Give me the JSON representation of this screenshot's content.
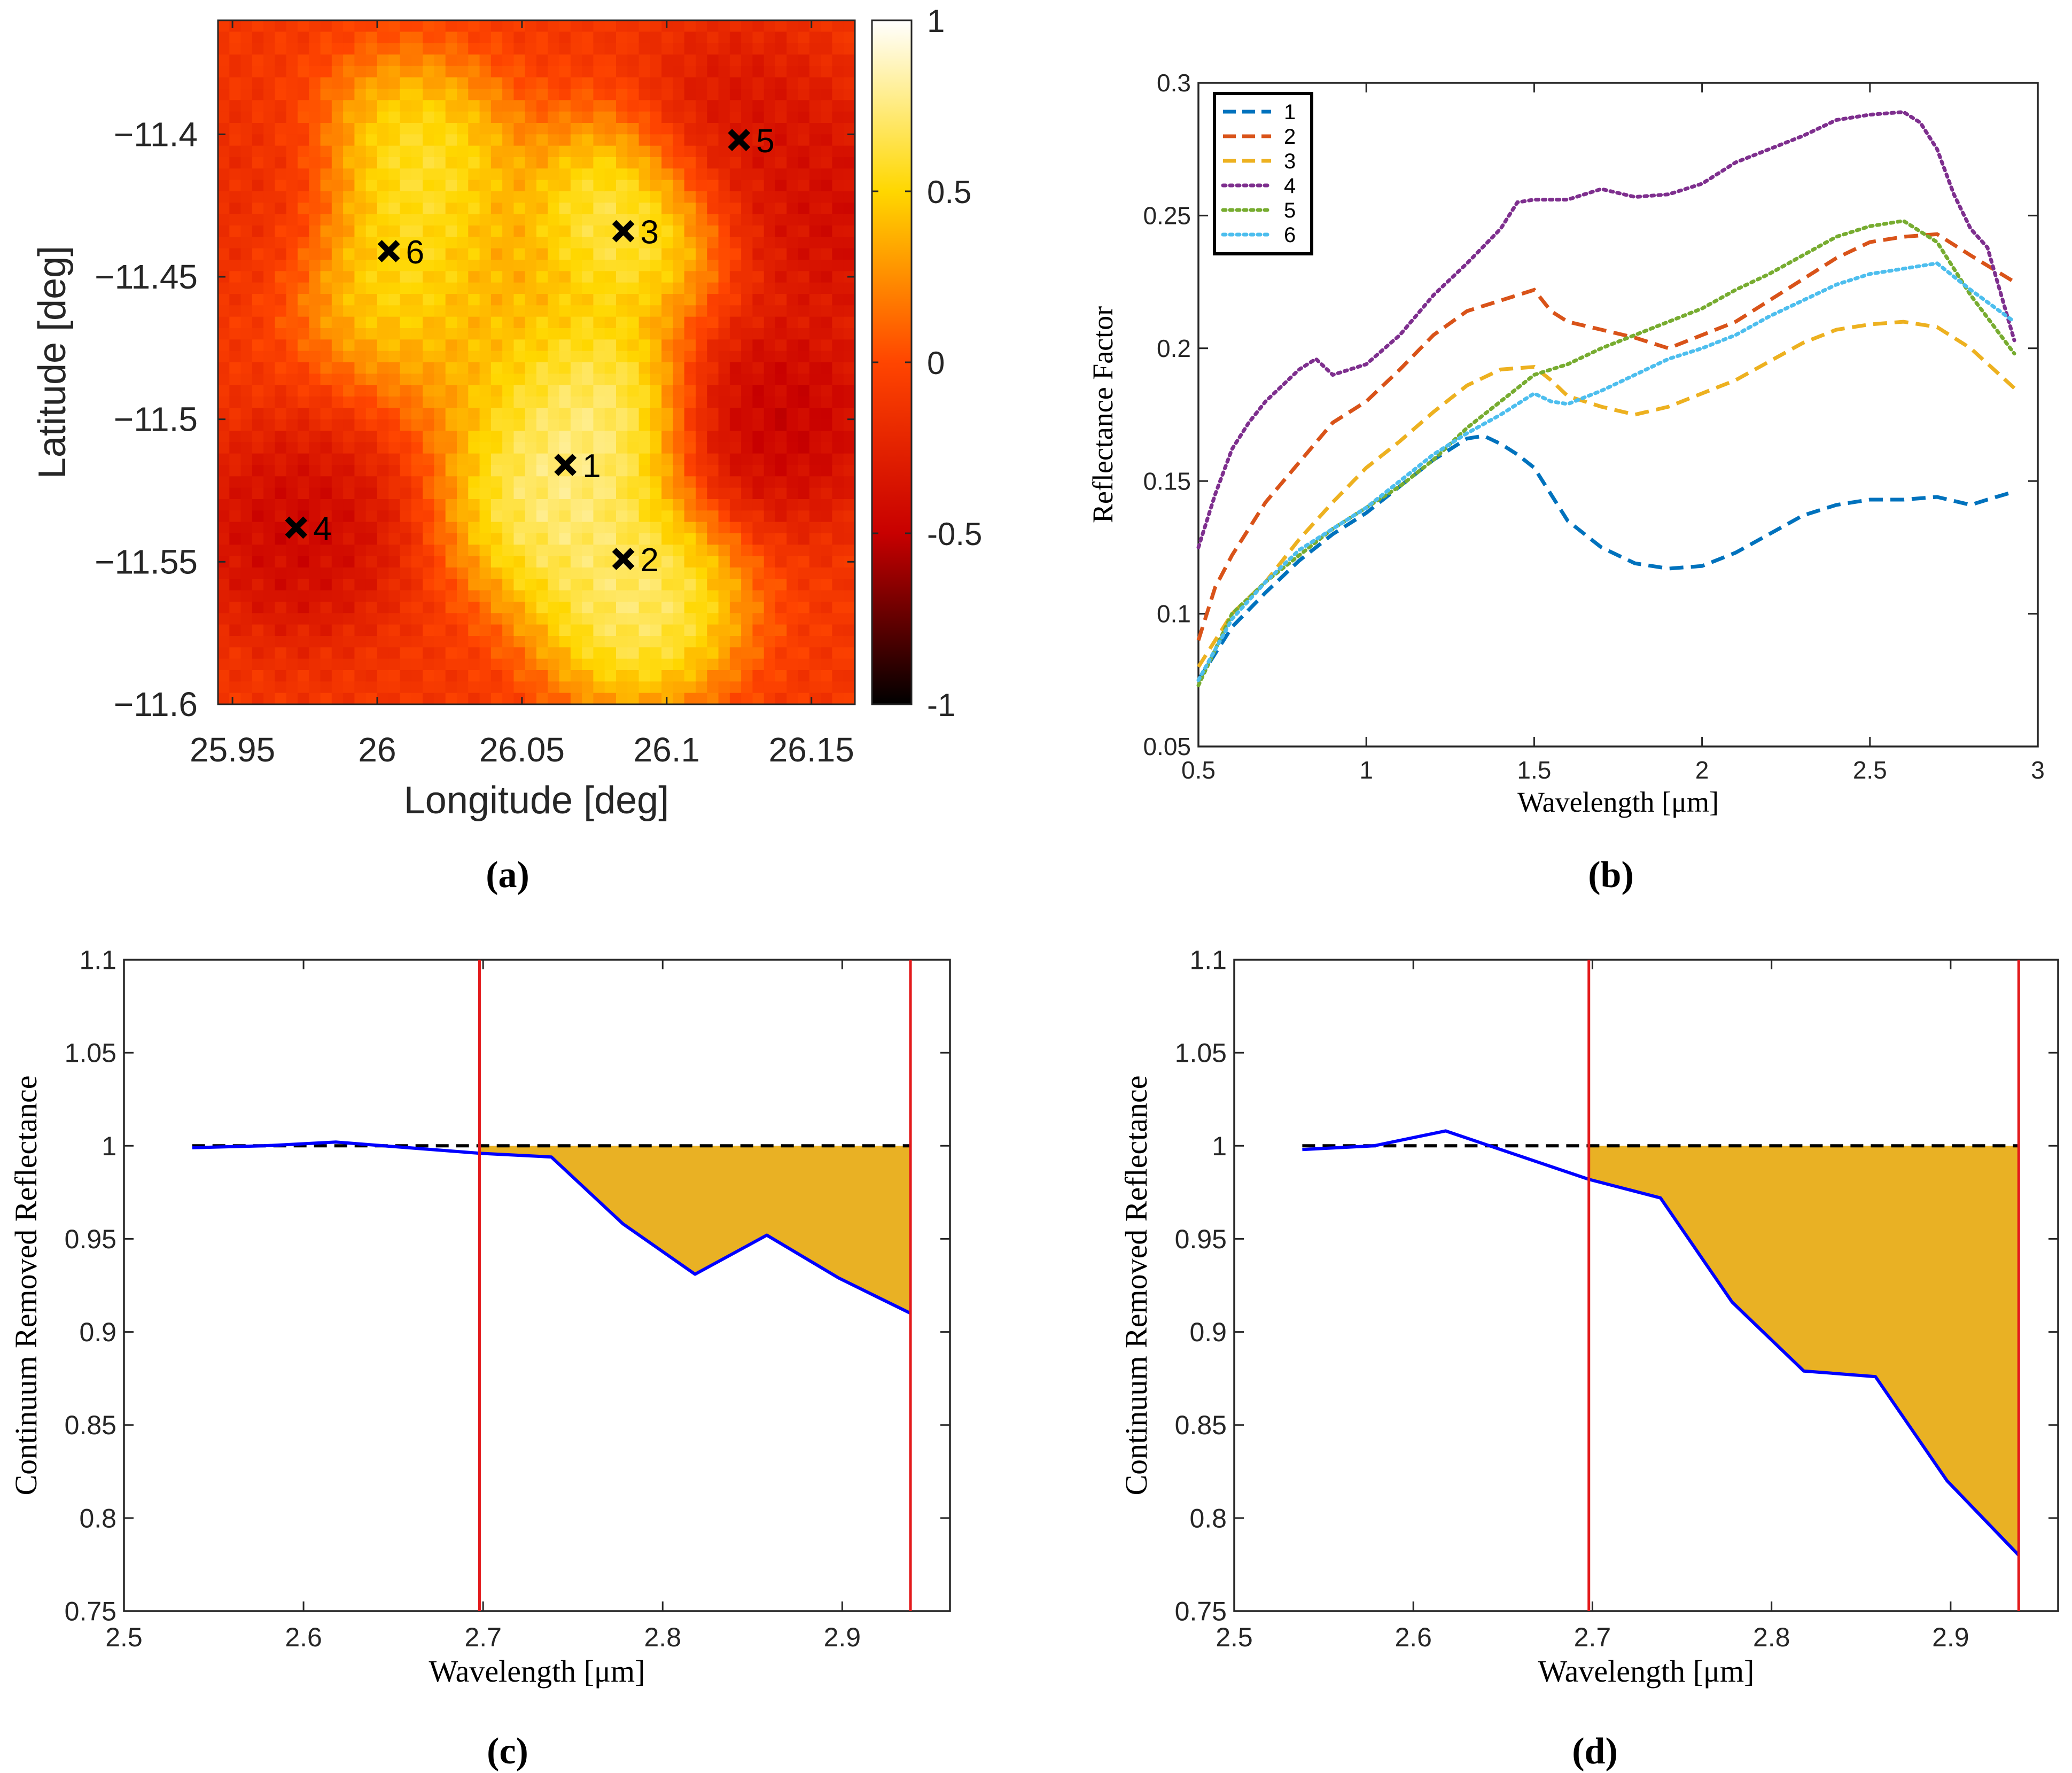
{
  "colors": {
    "map_low": "#000000",
    "map_mid_low": "#c80000",
    "map_mid": "#ff4500",
    "map_mid_high": "#ffd700",
    "map_high": "#ffffff",
    "continuum": "#000000",
    "spectrum": "#0000ff",
    "band_fill": "#e9b124",
    "band_lines": "#e31a1c"
  },
  "chart_data": [
    {
      "id": "a",
      "type": "heatmap",
      "caption": "(a)",
      "title": "",
      "xlabel": "Longitude [deg]",
      "ylabel": "Latitude [deg]",
      "xlim": [
        25.945,
        26.165
      ],
      "ylim": [
        -11.6,
        -11.36
      ],
      "xticks": [
        25.95,
        26,
        26.05,
        26.1,
        26.15
      ],
      "xtick_labels": [
        "25.95",
        "26",
        "26.05",
        "26.1",
        "26.15"
      ],
      "yticks": [
        -11.4,
        -11.45,
        -11.5,
        -11.55,
        -11.6
      ],
      "ytick_labels": [
        "−11.4",
        "−11.45",
        "−11.5",
        "−11.55",
        "−11.6"
      ],
      "colorbar": {
        "range": [
          -1,
          1
        ],
        "ticks": [
          1,
          0.5,
          0,
          -0.5,
          -1
        ],
        "tick_labels": [
          "1",
          "0.5",
          "0",
          "-0.5",
          "-1"
        ]
      },
      "blobs": [
        {
          "lon": 26.07,
          "lat": -11.495,
          "value": 1.0
        },
        {
          "lon": 26.062,
          "lat": -11.53,
          "value": 0.95
        },
        {
          "lon": 26.09,
          "lat": -11.565,
          "value": 0.95
        },
        {
          "lon": 26.085,
          "lat": -11.43,
          "value": 0.9
        },
        {
          "lon": 26.012,
          "lat": -11.41,
          "value": 0.8
        },
        {
          "lon": 26.008,
          "lat": -11.45,
          "value": 0.7
        },
        {
          "lon": 26.045,
          "lat": -11.475,
          "value": 0.45
        },
        {
          "lon": 25.972,
          "lat": -11.54,
          "value": -0.55
        },
        {
          "lon": 26.14,
          "lat": -11.5,
          "value": -0.6
        },
        {
          "lon": 26.125,
          "lat": -11.4,
          "value": -0.45
        },
        {
          "lon": 26.16,
          "lat": -11.43,
          "value": -0.5
        },
        {
          "lon": 25.96,
          "lat": -11.42,
          "value": -0.2
        }
      ],
      "markers": [
        {
          "label": "1",
          "lon": 26.065,
          "lat": -11.516
        },
        {
          "label": "2",
          "lon": 26.085,
          "lat": -11.549
        },
        {
          "label": "3",
          "lon": 26.085,
          "lat": -11.434
        },
        {
          "label": "4",
          "lon": 25.972,
          "lat": -11.538
        },
        {
          "label": "5",
          "lon": 26.125,
          "lat": -11.402
        },
        {
          "label": "6",
          "lon": 26.004,
          "lat": -11.441
        }
      ]
    },
    {
      "id": "b",
      "type": "line",
      "caption": "(b)",
      "title": "",
      "xlabel": "Wavelength [μm]",
      "ylabel": "Reflectance Factor",
      "xlim": [
        0.5,
        3
      ],
      "ylim": [
        0.05,
        0.3
      ],
      "xticks": [
        0.5,
        1,
        1.5,
        2,
        2.5,
        3
      ],
      "xtick_labels": [
        "0.5",
        "1",
        "1.5",
        "2",
        "2.5",
        "3"
      ],
      "yticks": [
        0.05,
        0.1,
        0.15,
        0.2,
        0.25,
        0.3
      ],
      "ytick_labels": [
        "0.05",
        "0.1",
        "0.15",
        "0.2",
        "0.25",
        "0.3"
      ],
      "legend_position": "top-left",
      "series": [
        {
          "name": "1",
          "color": "#0072bd",
          "style": "dashed",
          "x": [
            0.5,
            0.6,
            0.7,
            0.8,
            0.9,
            1.0,
            1.1,
            1.2,
            1.3,
            1.35,
            1.4,
            1.45,
            1.5,
            1.55,
            1.6,
            1.7,
            1.8,
            1.9,
            2.0,
            2.1,
            2.2,
            2.3,
            2.4,
            2.5,
            2.6,
            2.7,
            2.8,
            2.85,
            2.93
          ],
          "values": [
            0.075,
            0.095,
            0.108,
            0.12,
            0.13,
            0.138,
            0.148,
            0.158,
            0.166,
            0.167,
            0.164,
            0.16,
            0.155,
            0.145,
            0.135,
            0.125,
            0.119,
            0.117,
            0.118,
            0.123,
            0.13,
            0.137,
            0.141,
            0.143,
            0.143,
            0.144,
            0.141,
            0.143,
            0.146
          ]
        },
        {
          "name": "2",
          "color": "#d95319",
          "style": "dashed",
          "x": [
            0.5,
            0.55,
            0.6,
            0.7,
            0.8,
            0.9,
            1.0,
            1.1,
            1.2,
            1.3,
            1.4,
            1.45,
            1.5,
            1.55,
            1.6,
            1.7,
            1.8,
            1.9,
            2.0,
            2.1,
            2.2,
            2.3,
            2.4,
            2.5,
            2.6,
            2.7,
            2.8,
            2.93
          ],
          "values": [
            0.09,
            0.11,
            0.122,
            0.142,
            0.157,
            0.172,
            0.18,
            0.192,
            0.205,
            0.214,
            0.218,
            0.22,
            0.222,
            0.214,
            0.21,
            0.207,
            0.204,
            0.2,
            0.205,
            0.21,
            0.218,
            0.226,
            0.234,
            0.24,
            0.242,
            0.243,
            0.235,
            0.225
          ]
        },
        {
          "name": "3",
          "color": "#edb120",
          "style": "dashed",
          "x": [
            0.5,
            0.6,
            0.7,
            0.8,
            0.9,
            1.0,
            1.1,
            1.2,
            1.3,
            1.4,
            1.5,
            1.55,
            1.6,
            1.7,
            1.8,
            1.9,
            2.0,
            2.1,
            2.2,
            2.3,
            2.4,
            2.5,
            2.6,
            2.7,
            2.8,
            2.93
          ],
          "values": [
            0.08,
            0.1,
            0.112,
            0.128,
            0.142,
            0.155,
            0.165,
            0.176,
            0.186,
            0.192,
            0.193,
            0.188,
            0.182,
            0.178,
            0.175,
            0.178,
            0.183,
            0.188,
            0.195,
            0.202,
            0.207,
            0.209,
            0.21,
            0.208,
            0.2,
            0.185
          ]
        },
        {
          "name": "4",
          "color": "#7e2f8e",
          "style": "dotted",
          "x": [
            0.5,
            0.55,
            0.6,
            0.65,
            0.7,
            0.75,
            0.8,
            0.85,
            0.9,
            1.0,
            1.1,
            1.2,
            1.3,
            1.4,
            1.45,
            1.5,
            1.6,
            1.7,
            1.8,
            1.9,
            2.0,
            2.1,
            2.2,
            2.3,
            2.4,
            2.5,
            2.6,
            2.65,
            2.7,
            2.75,
            2.8,
            2.85,
            2.93
          ],
          "values": [
            0.125,
            0.145,
            0.162,
            0.172,
            0.18,
            0.186,
            0.192,
            0.196,
            0.19,
            0.194,
            0.205,
            0.22,
            0.232,
            0.245,
            0.255,
            0.256,
            0.256,
            0.26,
            0.257,
            0.258,
            0.262,
            0.27,
            0.275,
            0.28,
            0.286,
            0.288,
            0.289,
            0.285,
            0.275,
            0.258,
            0.245,
            0.238,
            0.203
          ]
        },
        {
          "name": "5",
          "color": "#77ac30",
          "style": "dotted",
          "x": [
            0.5,
            0.6,
            0.7,
            0.8,
            0.9,
            1.0,
            1.1,
            1.2,
            1.3,
            1.4,
            1.5,
            1.6,
            1.7,
            1.8,
            1.9,
            2.0,
            2.1,
            2.2,
            2.3,
            2.4,
            2.5,
            2.6,
            2.7,
            2.8,
            2.93
          ],
          "values": [
            0.073,
            0.1,
            0.112,
            0.122,
            0.132,
            0.14,
            0.148,
            0.158,
            0.17,
            0.18,
            0.19,
            0.194,
            0.2,
            0.205,
            0.21,
            0.215,
            0.222,
            0.228,
            0.235,
            0.242,
            0.246,
            0.248,
            0.24,
            0.22,
            0.198
          ]
        },
        {
          "name": "6",
          "color": "#4dbeee",
          "style": "dotted",
          "x": [
            0.5,
            0.6,
            0.7,
            0.8,
            0.9,
            1.0,
            1.1,
            1.2,
            1.3,
            1.4,
            1.5,
            1.55,
            1.6,
            1.7,
            1.8,
            1.9,
            2.0,
            2.1,
            2.2,
            2.3,
            2.4,
            2.5,
            2.6,
            2.7,
            2.8,
            2.93
          ],
          "values": [
            0.075,
            0.098,
            0.112,
            0.124,
            0.132,
            0.14,
            0.15,
            0.16,
            0.168,
            0.175,
            0.183,
            0.18,
            0.179,
            0.184,
            0.19,
            0.196,
            0.2,
            0.205,
            0.212,
            0.218,
            0.224,
            0.228,
            0.23,
            0.232,
            0.222,
            0.21
          ]
        }
      ]
    },
    {
      "id": "c",
      "type": "line",
      "caption": "(c)",
      "title": "",
      "xlabel": "Wavelength [μm]",
      "ylabel": "Continuum Removed Reflectance",
      "xlim": [
        2.5,
        2.96
      ],
      "ylim": [
        0.75,
        1.1
      ],
      "xticks": [
        2.5,
        2.6,
        2.7,
        2.8,
        2.9
      ],
      "xtick_labels": [
        "2.5",
        "2.6",
        "2.7",
        "2.8",
        "2.9"
      ],
      "yticks": [
        0.75,
        0.8,
        0.85,
        0.9,
        0.95,
        1,
        1.05,
        1.1
      ],
      "ytick_labels": [
        "0.75",
        "0.8",
        "0.85",
        "0.9",
        "0.95",
        "1",
        "1.05",
        "1.1"
      ],
      "band_limits": [
        2.698,
        2.938
      ],
      "continuum": 1.0,
      "x": [
        2.538,
        2.578,
        2.618,
        2.658,
        2.698,
        2.738,
        2.778,
        2.818,
        2.858,
        2.898,
        2.938
      ],
      "values": [
        0.999,
        1.0,
        1.002,
        0.999,
        0.996,
        0.994,
        0.958,
        0.931,
        0.952,
        0.929,
        0.91
      ]
    },
    {
      "id": "d",
      "type": "line",
      "caption": "(d)",
      "title": "",
      "xlabel": "Wavelength [μm]",
      "ylabel": "Continuum Removed Reflectance",
      "xlim": [
        2.5,
        2.96
      ],
      "ylim": [
        0.75,
        1.1
      ],
      "xticks": [
        2.5,
        2.6,
        2.7,
        2.8,
        2.9
      ],
      "xtick_labels": [
        "2.5",
        "2.6",
        "2.7",
        "2.8",
        "2.9"
      ],
      "yticks": [
        0.75,
        0.8,
        0.85,
        0.9,
        0.95,
        1,
        1.05,
        1.1
      ],
      "ytick_labels": [
        "0.75",
        "0.8",
        "0.85",
        "0.9",
        "0.95",
        "1",
        "1.05",
        "1.1"
      ],
      "band_limits": [
        2.698,
        2.938
      ],
      "continuum": 1.0,
      "x": [
        2.538,
        2.578,
        2.618,
        2.658,
        2.698,
        2.738,
        2.778,
        2.818,
        2.858,
        2.898,
        2.938
      ],
      "values": [
        0.998,
        1.0,
        1.008,
        0.995,
        0.982,
        0.972,
        0.916,
        0.879,
        0.876,
        0.82,
        0.78
      ]
    }
  ]
}
